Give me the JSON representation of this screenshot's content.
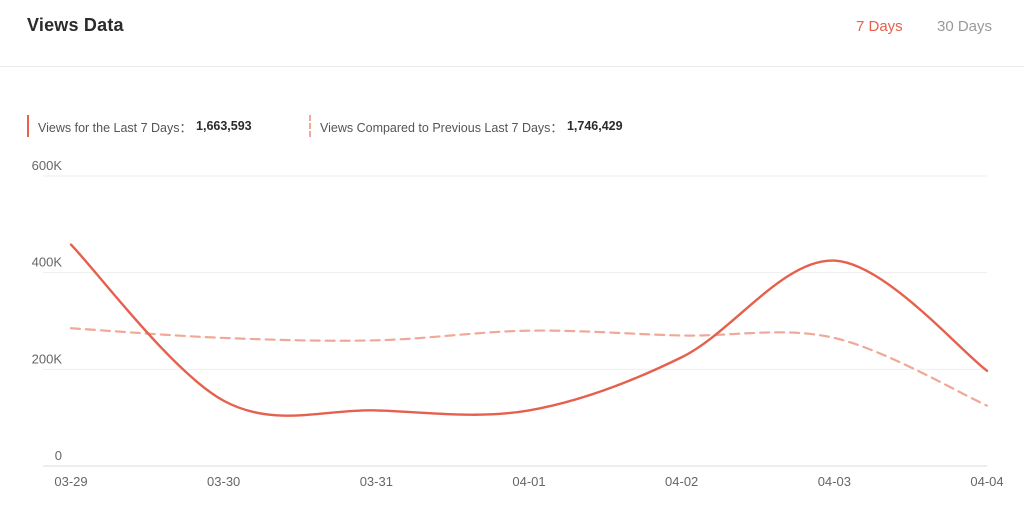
{
  "header": {
    "title": "Views Data",
    "tabs": [
      {
        "label": "7 Days",
        "active": true
      },
      {
        "label": "30 Days",
        "active": false
      }
    ]
  },
  "legend": {
    "current_label": "Views for the Last 7 Days：",
    "current_value": "1,663,593",
    "previous_label": "Views Compared to Previous Last 7 Days：",
    "previous_value": "1,746,429"
  },
  "colors": {
    "accent": "#e5604d",
    "previous_series": "#f0a898",
    "inactive_tab": "#999999",
    "grid": "#eeeeee"
  },
  "chart_data": {
    "type": "line",
    "x": [
      "03-29",
      "03-30",
      "03-31",
      "04-01",
      "04-02",
      "04-03",
      "04-04"
    ],
    "ylim": [
      0,
      600000
    ],
    "yticks": [
      0,
      200000,
      400000,
      600000
    ],
    "ytick_labels": [
      "0",
      "200K",
      "400K",
      "600K"
    ],
    "grid": true,
    "series": [
      {
        "name": "Views for the Last 7 Days",
        "style": "solid",
        "values": [
          458000,
          135000,
          115000,
          115000,
          225000,
          425000,
          197000
        ]
      },
      {
        "name": "Views Compared to Previous Last 7 Days",
        "style": "dashed",
        "values": [
          285000,
          265000,
          260000,
          280000,
          270000,
          265000,
          125000
        ]
      }
    ]
  }
}
